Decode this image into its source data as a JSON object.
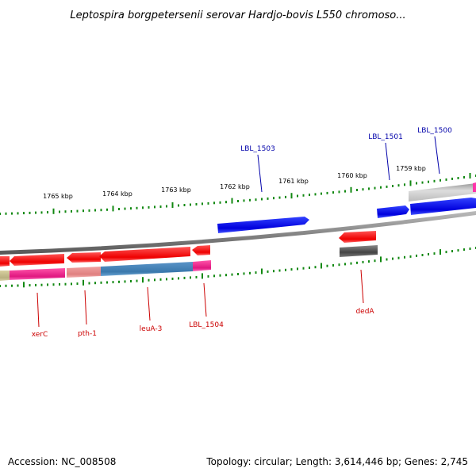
{
  "title": "Leptospira borgpetersenii serovar Hardjo-bovis L550 chromoso...",
  "footer": {
    "accession": "Accession: NC_008508",
    "topology": "Topology: circular; Length: 3,614,446 bp; Genes: 2,745"
  },
  "colors": {
    "forward_gene": "#0000ee",
    "reverse_gene": "#ee0000",
    "tick": "#118811",
    "backbone": "#888888",
    "forward_label": "#0000aa",
    "reverse_label": "#cc0000"
  },
  "kbp_labels": [
    "1765 kbp",
    "1764 kbp",
    "1763 kbp",
    "1762 kbp",
    "1761 kbp",
    "1760 kbp",
    "1759 kbp"
  ],
  "forward_genes": [
    "LBL_1503",
    "LBL_1501",
    "LBL_1500"
  ],
  "reverse_genes": [
    "xerC",
    "pth-1",
    "leuA-3",
    "LBL_1504",
    "dedA"
  ]
}
